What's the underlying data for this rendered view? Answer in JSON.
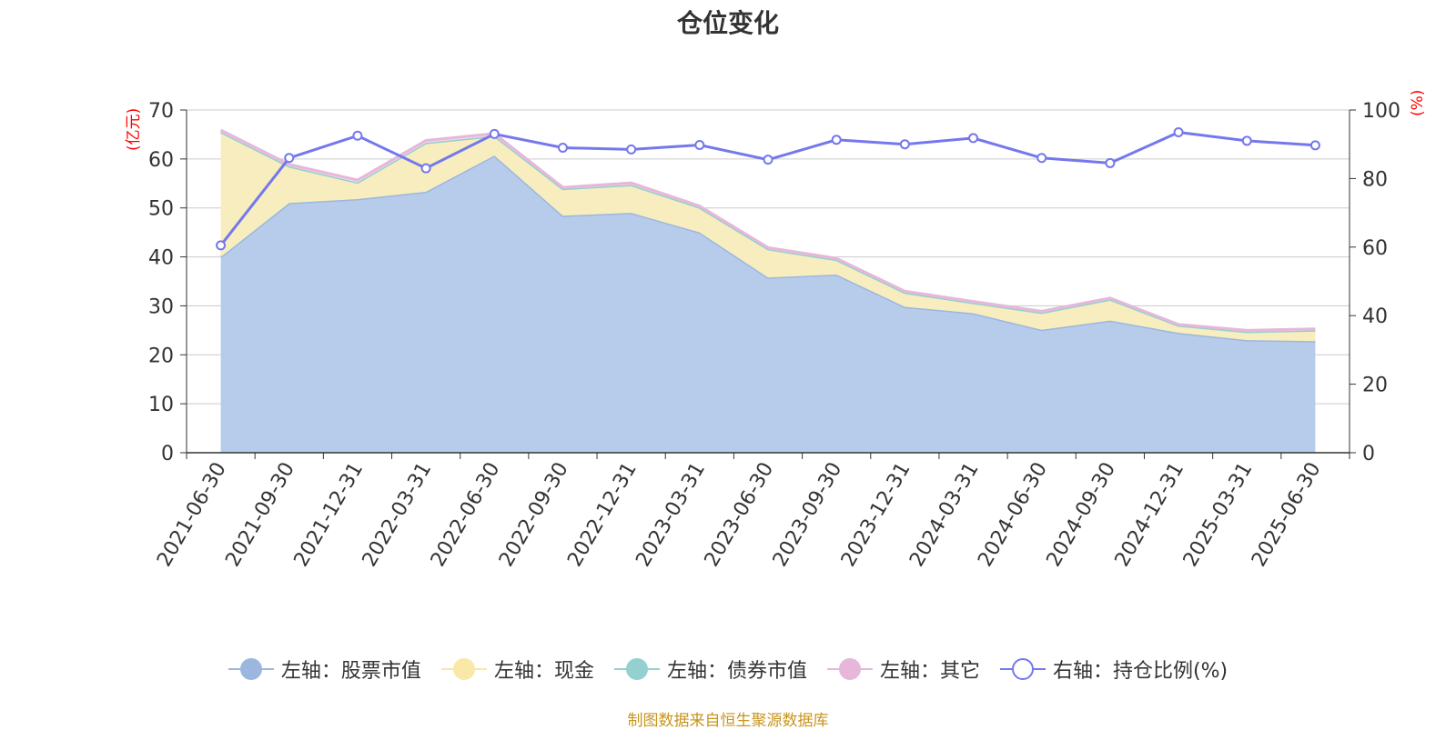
{
  "chart_data": {
    "type": "area",
    "title": "仓位变化",
    "left_axis_unit": "(亿元)",
    "right_axis_unit": "(%)",
    "ylim_left": [
      0,
      70
    ],
    "yticks_left": [
      0,
      10,
      20,
      30,
      40,
      50,
      60,
      70
    ],
    "ylim_right": [
      0,
      100
    ],
    "yticks_right": [
      0,
      20,
      40,
      60,
      80,
      100
    ],
    "grid": true,
    "legend_position": "bottom",
    "categories": [
      "2021-06-30",
      "2021-09-30",
      "2021-12-31",
      "2022-03-31",
      "2022-06-30",
      "2022-09-30",
      "2022-12-31",
      "2023-03-31",
      "2023-06-30",
      "2023-09-30",
      "2023-12-31",
      "2024-03-31",
      "2024-06-30",
      "2024-09-30",
      "2024-12-31",
      "2025-03-31",
      "2025-06-30"
    ],
    "series": [
      {
        "name": "左轴：股票市值",
        "axis": "left",
        "stack": "total",
        "color": "#9bb7e0",
        "fill": "#b7cceb",
        "values": [
          40.0,
          51.0,
          51.8,
          53.3,
          60.7,
          48.4,
          49.0,
          45.0,
          35.8,
          36.4,
          29.8,
          28.5,
          25.1,
          27.0,
          24.5,
          23.0,
          22.8
        ]
      },
      {
        "name": "左轴：现金",
        "axis": "left",
        "stack": "total",
        "color": "#f9e8a8",
        "fill": "#f8edbe",
        "values": [
          25.5,
          7.5,
          3.4,
          10.0,
          4.0,
          5.5,
          5.7,
          5.1,
          5.8,
          3.0,
          2.9,
          2.1,
          3.5,
          4.3,
          1.5,
          1.7,
          2.2
        ]
      },
      {
        "name": "左轴：债券市值",
        "axis": "left",
        "stack": "total",
        "color": "#93d0cf",
        "fill": "#b2e0de",
        "values": [
          0,
          0,
          0,
          0,
          0,
          0,
          0,
          0,
          0,
          0,
          0,
          0,
          0,
          0,
          0,
          0,
          0
        ]
      },
      {
        "name": "左轴：其它",
        "axis": "left",
        "stack": "total",
        "color": "#e7b7da",
        "fill": "#f3d6ea",
        "values": [
          0.4,
          0.4,
          0.5,
          0.5,
          0.5,
          0.3,
          0.4,
          0.3,
          0.3,
          0.3,
          0.3,
          0.3,
          0.3,
          0.3,
          0.2,
          0.3,
          0.3
        ]
      },
      {
        "name": "右轴：持仓比例(%)",
        "axis": "right",
        "color": "#7478ec",
        "values": [
          60.5,
          86.0,
          92.5,
          83.0,
          93.0,
          89.0,
          88.5,
          89.8,
          85.5,
          91.3,
          90.0,
          91.8,
          86.0,
          84.5,
          93.5,
          91.0,
          89.7
        ]
      }
    ],
    "source": "制图数据来自恒生聚源数据库"
  }
}
